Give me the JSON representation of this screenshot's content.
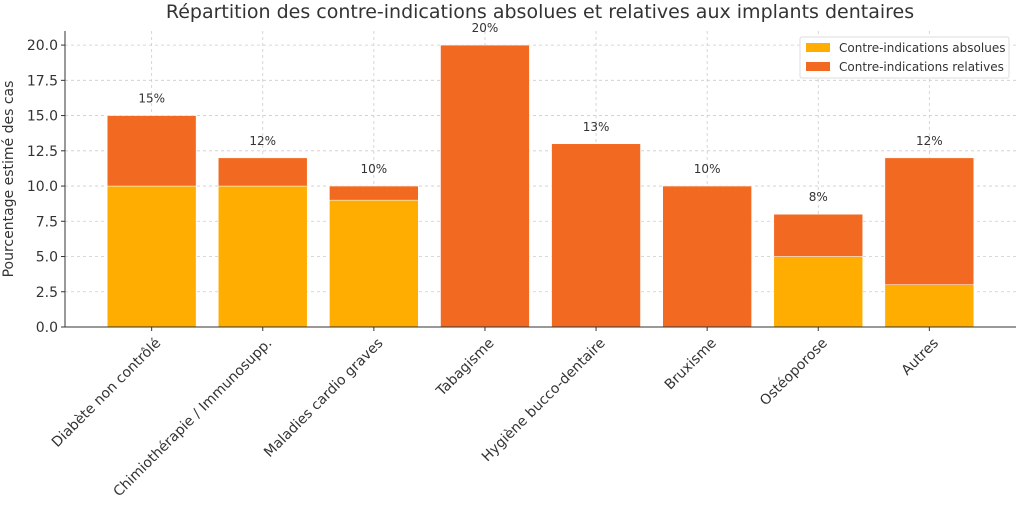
{
  "chart_data": {
    "type": "bar",
    "stacked": true,
    "title": "Répartition des contre-indications absolues et relatives aux implants dentaires",
    "xlabel": "",
    "ylabel": "Pourcentage estimé des cas",
    "ylim": [
      0,
      21
    ],
    "yticks": [
      "0.0",
      "2.5",
      "5.0",
      "7.5",
      "10.0",
      "12.5",
      "15.0",
      "17.5",
      "20.0"
    ],
    "grid": true,
    "legend_position": "top-right",
    "categories": [
      "Diabète non contrôlé",
      "Chimiothérapie / Immunosupp.",
      "Maladies cardio graves",
      "Tabagisme",
      "Hygiène bucco-dentaire",
      "Bruxisme",
      "Ostéoporose",
      "Autres"
    ],
    "series": [
      {
        "name": "Contre-indications absolues",
        "color": "#FFAD00",
        "values": [
          10,
          10,
          9,
          0,
          0,
          0,
          5,
          3
        ]
      },
      {
        "name": "Contre-indications relatives",
        "color": "#F26A22",
        "values": [
          5,
          2,
          1,
          20,
          13,
          10,
          3,
          9
        ]
      }
    ],
    "data_labels": [
      "15%",
      "12%",
      "10%",
      "20%",
      "13%",
      "10%",
      "8%",
      "12%"
    ]
  }
}
